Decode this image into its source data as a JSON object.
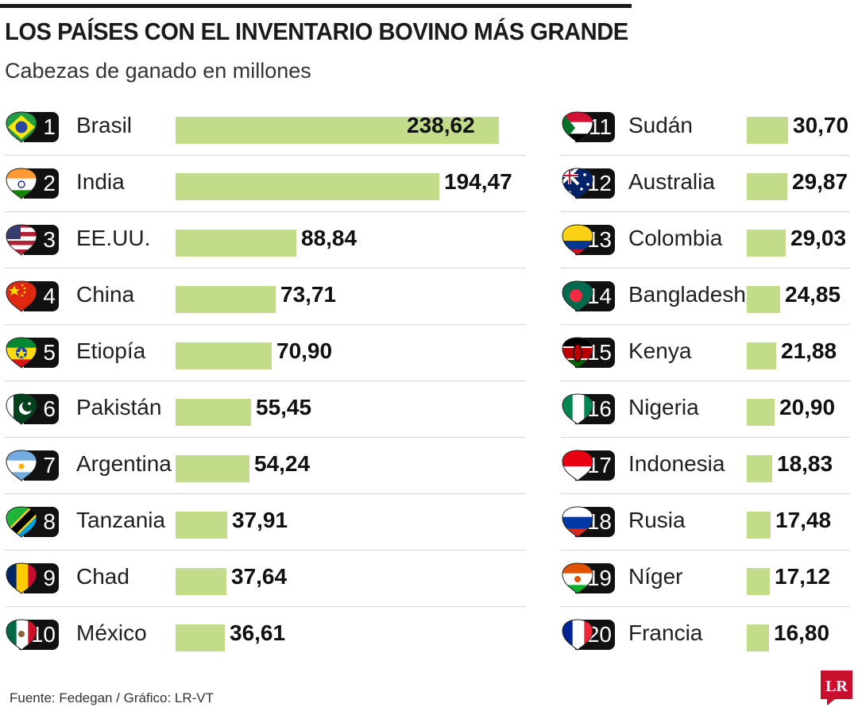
{
  "header": {
    "title": "LOS PAÍSES CON EL INVENTARIO BOVINO MÁS GRANDE",
    "subtitle": "Cabezas de ganado en millones"
  },
  "footer": {
    "source": "Fuente: Fedegan  / Gráfico: LR-VT",
    "logo_text": "LR"
  },
  "colors": {
    "bar": "#c3dc8a",
    "badge": "#111111",
    "separator": "#d4d4d4",
    "logo": "#c8102e"
  },
  "chart_data": {
    "type": "bar",
    "orientation": "horizontal",
    "title": "LOS PAÍSES CON EL INVENTARIO BOVINO MÁS GRANDE",
    "subtitle": "Cabezas de ganado en millones",
    "value_format": "comma-decimal",
    "items": [
      {
        "rank": "1",
        "name": "Brasil",
        "value": 238.62,
        "label": "238,62",
        "flag": "brazil-flag-icon"
      },
      {
        "rank": "2",
        "name": "India",
        "value": 194.47,
        "label": "194,47",
        "flag": "india-flag-icon"
      },
      {
        "rank": "3",
        "name": "EE.UU.",
        "value": 88.84,
        "label": "88,84",
        "flag": "usa-flag-icon"
      },
      {
        "rank": "4",
        "name": "China",
        "value": 73.71,
        "label": "73,71",
        "flag": "china-flag-icon"
      },
      {
        "rank": "5",
        "name": "Etiopía",
        "value": 70.9,
        "label": "70,90",
        "flag": "ethiopia-flag-icon"
      },
      {
        "rank": "6",
        "name": "Pakistán",
        "value": 55.45,
        "label": "55,45",
        "flag": "pakistan-flag-icon"
      },
      {
        "rank": "7",
        "name": "Argentina",
        "value": 54.24,
        "label": "54,24",
        "flag": "argentina-flag-icon"
      },
      {
        "rank": "8",
        "name": "Tanzania",
        "value": 37.91,
        "label": "37,91",
        "flag": "tanzania-flag-icon"
      },
      {
        "rank": "9",
        "name": "Chad",
        "value": 37.64,
        "label": "37,64",
        "flag": "chad-flag-icon"
      },
      {
        "rank": "10",
        "name": "México",
        "value": 36.61,
        "label": "36,61",
        "flag": "mexico-flag-icon"
      },
      {
        "rank": "11",
        "name": "Sudán",
        "value": 30.7,
        "label": "30,70",
        "flag": "sudan-flag-icon"
      },
      {
        "rank": "12",
        "name": "Australia",
        "value": 29.87,
        "label": "29,87",
        "flag": "australia-flag-icon"
      },
      {
        "rank": "13",
        "name": "Colombia",
        "value": 29.03,
        "label": "29,03",
        "flag": "colombia-flag-icon"
      },
      {
        "rank": "14",
        "name": "Bangladesh",
        "value": 24.85,
        "label": "24,85",
        "flag": "bangladesh-flag-icon"
      },
      {
        "rank": "15",
        "name": "Kenya",
        "value": 21.88,
        "label": "21,88",
        "flag": "kenya-flag-icon"
      },
      {
        "rank": "16",
        "name": "Nigeria",
        "value": 20.9,
        "label": "20,90",
        "flag": "nigeria-flag-icon"
      },
      {
        "rank": "17",
        "name": "Indonesia",
        "value": 18.83,
        "label": "18,83",
        "flag": "indonesia-flag-icon"
      },
      {
        "rank": "18",
        "name": "Rusia",
        "value": 17.48,
        "label": "17,48",
        "flag": "russia-flag-icon"
      },
      {
        "rank": "19",
        "name": "Níger",
        "value": 17.12,
        "label": "17,12",
        "flag": "niger-flag-icon"
      },
      {
        "rank": "20",
        "name": "Francia",
        "value": 16.8,
        "label": "16,80",
        "flag": "france-flag-icon"
      }
    ]
  }
}
